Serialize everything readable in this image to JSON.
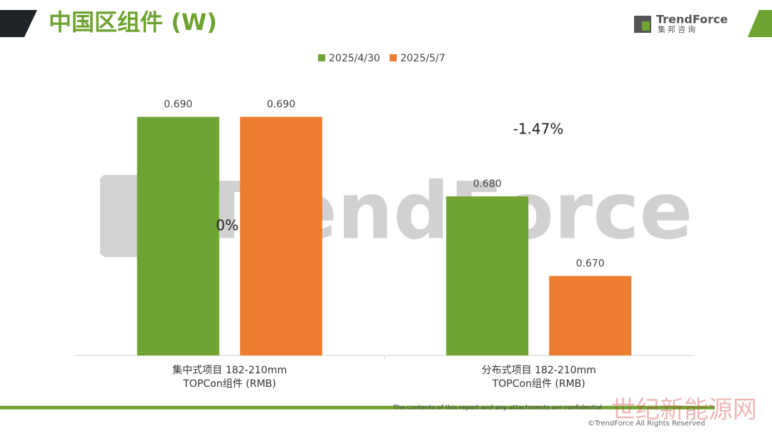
{
  "header": {
    "title": "中国区组件 (W)",
    "brand": "TrendForce",
    "brand_cn": "集邦咨询"
  },
  "chart_data": {
    "type": "bar",
    "categories": [
      [
        "集中式项目 182-210mm",
        "TOPCon组件 (RMB)"
      ],
      [
        "分布式项目 182-210mm",
        "TOPCon组件 (RMB)"
      ]
    ],
    "series": [
      {
        "name": "2025/4/30",
        "color": "#6fa332",
        "values": [
          0.69,
          0.68
        ],
        "value_labels": [
          "0.690",
          "0.680"
        ]
      },
      {
        "name": "2025/5/7",
        "color": "#ed7d31",
        "values": [
          0.69,
          0.67
        ],
        "value_labels": [
          "0.690",
          "0.670"
        ]
      }
    ],
    "ylim": [
      0.66,
      0.695
    ],
    "annotations": [
      "0%",
      "-1.47%"
    ],
    "legend": "top"
  },
  "footer": {
    "notice": "The contents of this report and any attachments are confidential",
    "copyright": "©TrendForce All Rights Reserved",
    "watermark": "世纪新能源网"
  }
}
